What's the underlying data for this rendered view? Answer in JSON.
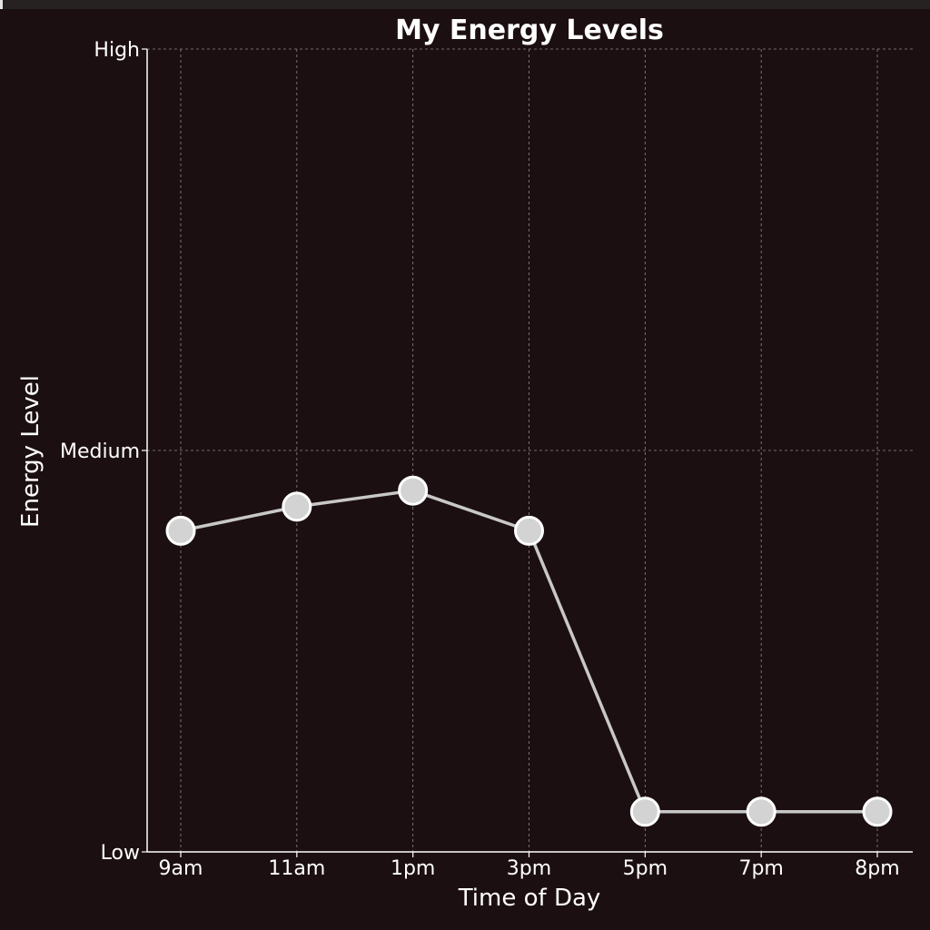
{
  "chart_data": {
    "type": "line",
    "title": "My Energy Levels",
    "xlabel": "Time of Day",
    "ylabel": "Energy Level",
    "categories": [
      "9am",
      "11am",
      "1pm",
      "3pm",
      "5pm",
      "7pm",
      "8pm"
    ],
    "y_ticks": [
      {
        "value": 0,
        "label": "Low"
      },
      {
        "value": 5,
        "label": "Medium"
      },
      {
        "value": 10,
        "label": "High"
      }
    ],
    "ylim": [
      0,
      10
    ],
    "series": [
      {
        "values": [
          4.0,
          4.3,
          4.5,
          4.0,
          0.5,
          0.5,
          0.5
        ]
      }
    ],
    "grid": true,
    "colors": {
      "background": "#1c0f11",
      "line": "#c8c8c8",
      "marker_fill": "#d3d3d3",
      "marker_edge": "#ffffff",
      "text": "#ffffff",
      "grid": "#8a8a8a"
    }
  }
}
